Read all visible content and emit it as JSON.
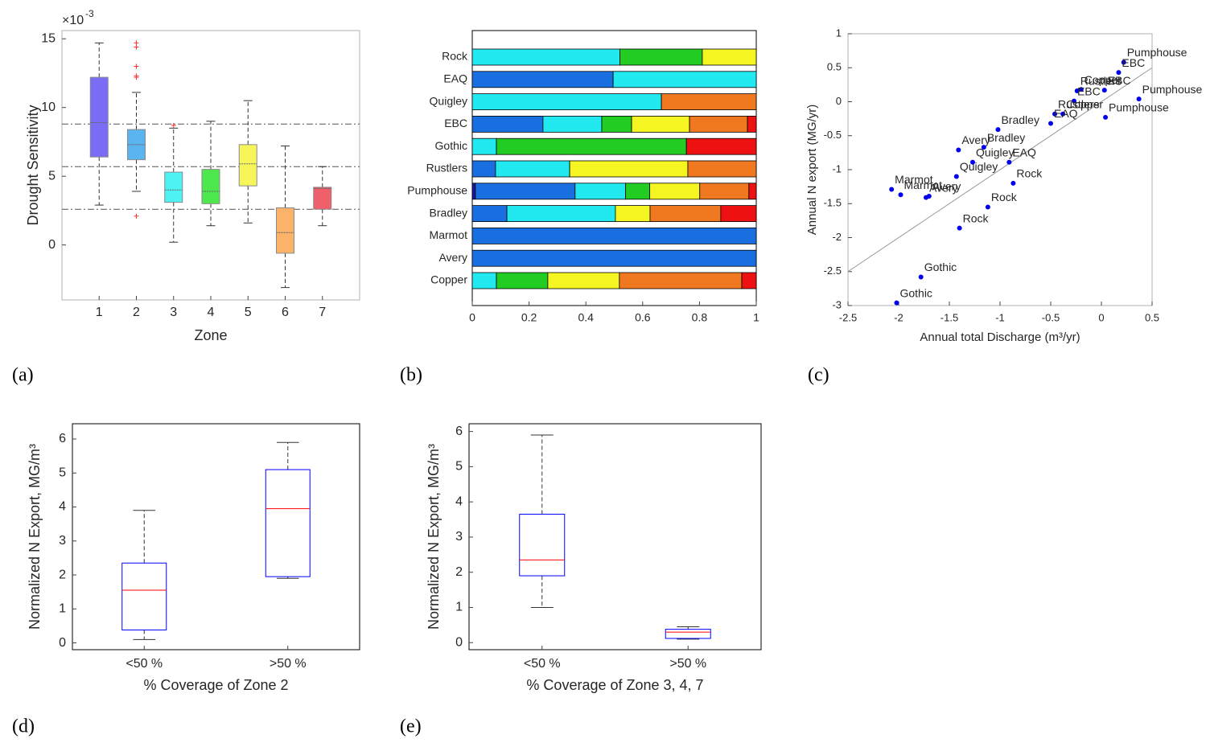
{
  "chart_data": [
    {
      "type": "box",
      "panel_label": "(a)",
      "xlabel": "Zone",
      "ylabel": "Drought Sensitivity",
      "y_multiplier": "×10",
      "y_multiplier_exponent": "-3",
      "x": [
        1,
        2,
        3,
        4,
        5,
        6,
        7
      ],
      "xlim": [
        0,
        8
      ],
      "xticks": [
        1,
        2,
        3,
        4,
        5,
        6,
        7
      ],
      "ylim": [
        -4,
        15.6
      ],
      "yticks": [
        0,
        5,
        10,
        15
      ],
      "reference_lines": [
        8.8,
        5.7,
        2.6
      ],
      "colors": [
        "#7b6cf6",
        "#5ab4f0",
        "#4ef2f2",
        "#4ee84e",
        "#f6f65a",
        "#fbb36a",
        "#f0606a"
      ],
      "median_color": "#666666",
      "flier_color": "#ff3030",
      "boxes": [
        {
          "whislo": 2.9,
          "q1": 6.4,
          "med": 8.9,
          "q3": 12.2,
          "whishi": 14.7,
          "fliers": []
        },
        {
          "whislo": 3.9,
          "q1": 6.2,
          "med": 7.3,
          "q3": 8.4,
          "whishi": 11.1,
          "fliers": [
            14.7,
            14.4,
            13.0,
            12.3,
            12.2,
            2.1
          ]
        },
        {
          "whislo": 0.2,
          "q1": 3.1,
          "med": 4.0,
          "q3": 5.3,
          "whishi": 8.5,
          "fliers": [
            8.7
          ]
        },
        {
          "whislo": 1.4,
          "q1": 3.0,
          "med": 3.9,
          "q3": 5.5,
          "whishi": 9.0,
          "fliers": []
        },
        {
          "whislo": 1.6,
          "q1": 4.3,
          "med": 5.9,
          "q3": 7.3,
          "whishi": 10.5,
          "fliers": []
        },
        {
          "whislo": -3.1,
          "q1": -0.6,
          "med": 0.9,
          "q3": 2.7,
          "whishi": 7.2,
          "fliers": []
        },
        {
          "whislo": 1.4,
          "q1": 2.6,
          "med": 4.1,
          "q3": 4.2,
          "whishi": 5.7,
          "fliers": []
        }
      ]
    },
    {
      "type": "bar",
      "panel_label": "(b)",
      "orientation": "horizontal",
      "stacked": true,
      "categories": [
        "Rock",
        "EAQ",
        "Quigley",
        "EBC",
        "Gothic",
        "Rustlers",
        "Pumphouse",
        "Bradley",
        "Marmot",
        "Avery",
        "Copper"
      ],
      "xlim": [
        0,
        1
      ],
      "xticks": [
        0,
        0.2,
        0.4,
        0.6,
        0.8,
        1
      ],
      "series": [
        {
          "color": "#1a1aa0",
          "values": [
            0,
            0,
            0,
            0,
            0,
            0,
            0.011,
            0,
            0,
            0,
            0
          ]
        },
        {
          "color": "#1a6fe0",
          "values": [
            0,
            0.496,
            0,
            0.249,
            0,
            0.082,
            0.351,
            0.122,
            1,
            1,
            0
          ]
        },
        {
          "color": "#22e8f0",
          "values": [
            0.52,
            0.504,
            0.666,
            0.207,
            0.085,
            0.261,
            0.178,
            0.382,
            0,
            0,
            0.085
          ]
        },
        {
          "color": "#22cc22",
          "values": [
            0.29,
            0,
            0,
            0.105,
            0.669,
            0,
            0.085,
            0,
            0,
            0,
            0.181
          ]
        },
        {
          "color": "#f5f522",
          "values": [
            0.19,
            0,
            0,
            0.204,
            0,
            0.416,
            0.176,
            0.122,
            0,
            0,
            0.252
          ]
        },
        {
          "color": "#f07820",
          "values": [
            0,
            0,
            0.334,
            0.204,
            0,
            0.241,
            0.173,
            0.249,
            0,
            0,
            0.431
          ]
        },
        {
          "color": "#ee1111",
          "values": [
            0,
            0,
            0,
            0.031,
            0.246,
            0,
            0.026,
            0.125,
            0,
            0,
            0.051
          ]
        }
      ]
    },
    {
      "type": "scatter",
      "panel_label": "(c)",
      "xlabel": "Annual total Discharge (m³/yr)",
      "ylabel": "Annual N export (MG/yr)",
      "xlim": [
        -2.5,
        0.5
      ],
      "xticks": [
        -2.5,
        -2,
        -1.5,
        -1,
        -0.5,
        0,
        0.5
      ],
      "ylim": [
        -3,
        1
      ],
      "yticks": [
        -3,
        -2.5,
        -2,
        -1.5,
        -1,
        -0.5,
        0,
        0.5,
        1
      ],
      "color": "#0000ee",
      "fit_line": {
        "x": [
          -2.5,
          0.5
        ],
        "y": [
          -2.5,
          0.5
        ],
        "color": "#999999"
      },
      "x": [
        0.22,
        0.17,
        -0.2,
        -0.24,
        0.03,
        0.37,
        -0.27,
        -0.46,
        -0.38,
        -0.5,
        0.04,
        -1.02,
        -1.41,
        -1.16,
        -1.27,
        -0.91,
        -1.43,
        -0.87,
        -2.07,
        -1.98,
        -1.7,
        -1.73,
        -1.12,
        -1.4,
        -1.78,
        -2.02
      ],
      "y": [
        0.58,
        0.43,
        0.18,
        0.16,
        0.17,
        0.04,
        0.01,
        -0.18,
        -0.18,
        -0.32,
        -0.23,
        -0.41,
        -0.71,
        -0.67,
        -0.89,
        -0.89,
        -1.1,
        -1.2,
        -1.29,
        -1.37,
        -1.39,
        -1.41,
        -1.55,
        -1.86,
        -2.58,
        -2.96
      ],
      "labels": [
        "Pumphouse",
        "EBC",
        "Copper",
        "Rustlers",
        "EBC",
        "Pumphouse",
        "EBC",
        "Rustlers",
        "Copper",
        "EAQ",
        "Pumphouse",
        "Bradley",
        "Avery",
        "Bradley",
        "Quigley",
        "EAQ",
        "Quigley",
        "Rock",
        "Marmot",
        "Marmot",
        "Avery",
        "Avery",
        "Rock",
        "Rock",
        "Gothic",
        "Gothic"
      ]
    },
    {
      "type": "box",
      "panel_label": "(d)",
      "xlabel": "% Coverage of Zone 2",
      "ylabel": "Normalized N Export, MG/m³",
      "categories": [
        "<50 %",
        ">50 %"
      ],
      "ylim": [
        -0.2,
        6.45
      ],
      "yticks": [
        0,
        1,
        2,
        3,
        4,
        5,
        6
      ],
      "box_color": "#0000ff",
      "median_color": "#ff0000",
      "boxes": [
        {
          "whislo": 0.1,
          "q1": 0.38,
          "med": 1.55,
          "q3": 2.35,
          "whishi": 3.9,
          "fliers": []
        },
        {
          "whislo": 1.9,
          "q1": 1.95,
          "med": 3.95,
          "q3": 5.1,
          "whishi": 5.9,
          "fliers": []
        }
      ]
    },
    {
      "type": "box",
      "panel_label": "(e)",
      "xlabel": "% Coverage of Zone 3, 4, 7",
      "ylabel": "Normalized N Export, MG/m³",
      "categories": [
        "<50 %",
        ">50 %"
      ],
      "ylim": [
        -0.2,
        6.22
      ],
      "yticks": [
        0,
        1,
        2,
        3,
        4,
        5,
        6
      ],
      "box_color": "#0000ff",
      "median_color": "#ff0000",
      "boxes": [
        {
          "whislo": 1.0,
          "q1": 1.9,
          "med": 2.35,
          "q3": 3.65,
          "whishi": 5.9,
          "fliers": []
        },
        {
          "whislo": 0.1,
          "q1": 0.12,
          "med": 0.3,
          "q3": 0.38,
          "whishi": 0.45,
          "fliers": []
        }
      ]
    }
  ]
}
